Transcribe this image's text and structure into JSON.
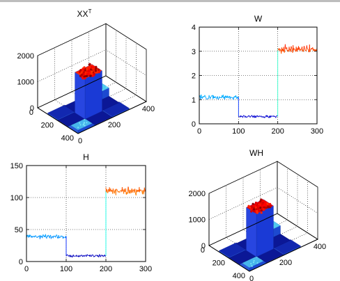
{
  "chart_data": [
    {
      "id": "xxt",
      "type": "surface3d",
      "title": "XX",
      "title_superscript": "T",
      "x_ticks": [
        0,
        200,
        400
      ],
      "y_ticks": [
        0,
        200,
        400
      ],
      "z_ticks": [
        0,
        1000,
        2000
      ],
      "xlim": [
        0,
        400
      ],
      "ylim": [
        0,
        400
      ],
      "zlim": [
        0,
        2000
      ],
      "grid": true,
      "colormap": "jet",
      "blocks": [
        {
          "region": "center",
          "x": [
            100,
            200
          ],
          "y": [
            100,
            200
          ],
          "level": 1550
        },
        {
          "region": "corner-low",
          "x": [
            0,
            100
          ],
          "y": [
            0,
            100
          ],
          "level": 140
        },
        {
          "region": "corner-high",
          "x": [
            200,
            300
          ],
          "y": [
            200,
            300
          ],
          "level": 340
        },
        {
          "region": "mixed",
          "x": [
            0,
            100
          ],
          "y": [
            200,
            300
          ],
          "level": 50
        },
        {
          "region": "mixed",
          "x": [
            200,
            300
          ],
          "y": [
            0,
            100
          ],
          "level": 50
        }
      ]
    },
    {
      "id": "w",
      "type": "line",
      "title": "W",
      "x_ticks": [
        0,
        100,
        200,
        300
      ],
      "y_ticks": [
        0,
        1,
        2,
        3,
        4
      ],
      "xlim": [
        0,
        300
      ],
      "ylim": [
        0,
        4
      ],
      "grid": true,
      "colormap": "jet",
      "segments": [
        {
          "x": [
            0,
            100
          ],
          "mean": 1.1,
          "noise": 0.09
        },
        {
          "x": [
            100,
            200
          ],
          "mean": 0.3,
          "noise": 0.05
        },
        {
          "x": [
            200,
            300
          ],
          "mean": 3.1,
          "noise": 0.15
        }
      ]
    },
    {
      "id": "h",
      "type": "line",
      "title": "H",
      "x_ticks": [
        0,
        100,
        200,
        300
      ],
      "y_ticks": [
        0,
        50,
        100,
        150
      ],
      "xlim": [
        0,
        300
      ],
      "ylim": [
        0,
        150
      ],
      "grid": true,
      "colormap": "jet",
      "segments": [
        {
          "x": [
            0,
            100
          ],
          "mean": 39,
          "noise": 3
        },
        {
          "x": [
            100,
            200
          ],
          "mean": 9,
          "noise": 2
        },
        {
          "x": [
            200,
            300
          ],
          "mean": 110,
          "noise": 6
        }
      ]
    },
    {
      "id": "wh",
      "type": "surface3d",
      "title": "WH",
      "x_ticks": [
        0,
        200,
        400
      ],
      "y_ticks": [
        0,
        200,
        400
      ],
      "z_ticks": [
        0,
        1000,
        2000
      ],
      "xlim": [
        0,
        400
      ],
      "ylim": [
        0,
        400
      ],
      "zlim": [
        0,
        2000
      ],
      "grid": true,
      "colormap": "jet",
      "blocks": [
        {
          "region": "center",
          "x": [
            100,
            200
          ],
          "y": [
            100,
            200
          ],
          "level": 1650
        },
        {
          "region": "corner-low",
          "x": [
            0,
            100
          ],
          "y": [
            0,
            100
          ],
          "level": 140
        },
        {
          "region": "corner-high",
          "x": [
            200,
            300
          ],
          "y": [
            200,
            300
          ],
          "level": 340
        },
        {
          "region": "mixed",
          "x": [
            0,
            100
          ],
          "y": [
            200,
            300
          ],
          "level": 50
        },
        {
          "region": "mixed",
          "x": [
            200,
            300
          ],
          "y": [
            0,
            100
          ],
          "level": 50
        }
      ]
    }
  ]
}
